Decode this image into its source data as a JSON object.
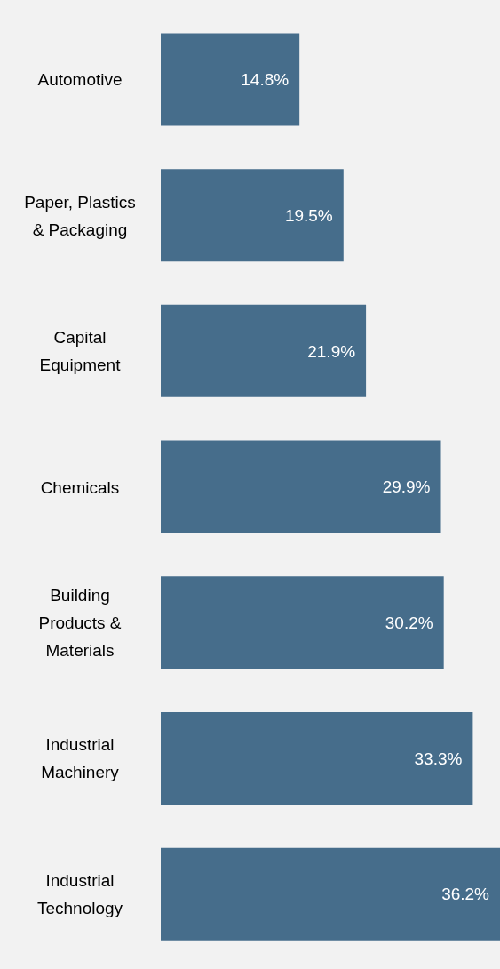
{
  "chart_data": {
    "type": "bar",
    "orientation": "horizontal",
    "categories": [
      "Automotive",
      "Paper, Plastics & Packaging",
      "Capital Equipment",
      "Chemicals",
      "Building Products & Materials",
      "Industrial Machinery",
      "Industrial Technology"
    ],
    "values": [
      14.8,
      19.5,
      21.9,
      29.9,
      30.2,
      33.3,
      36.2
    ],
    "value_labels": [
      "14.8%",
      "19.5%",
      "21.9%",
      "29.9%",
      "30.2%",
      "33.3%",
      "36.2%"
    ],
    "color": "#466d8b"
  }
}
